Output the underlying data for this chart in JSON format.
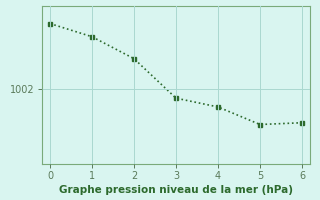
{
  "x": [
    0,
    1,
    2,
    3,
    4,
    5,
    6
  ],
  "y": [
    1009.5,
    1008.0,
    1005.5,
    1001.0,
    1000.0,
    998.0,
    998.2
  ],
  "line_color": "#2d6a2d",
  "bg_color": "#d9f5f0",
  "grid_color": "#aad8d0",
  "axis_color": "#7aaa7a",
  "xlabel": "Graphe pression niveau de la mer (hPa)",
  "ytick_labels": [
    "1002"
  ],
  "ytick_values": [
    1002
  ],
  "xlim": [
    -0.2,
    6.2
  ],
  "ylim": [
    993.5,
    1011.5
  ],
  "marker": "s",
  "marker_size": 3,
  "linestyle": ":",
  "linewidth": 1.2,
  "xlabel_fontsize": 7.5,
  "xlabel_color": "#2d6a2d",
  "tick_color": "#5a7a5a",
  "tick_fontsize": 7
}
